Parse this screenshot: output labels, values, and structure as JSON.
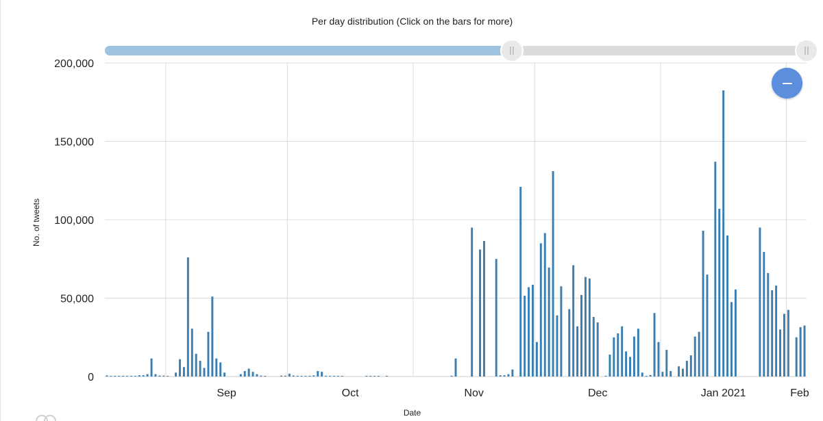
{
  "colors": {
    "bar": "#3c7eb0",
    "grid": "#dcdcdc",
    "slider_fill": "#9ec3e0",
    "slider_track": "#dcdcdc",
    "zoom_button": "#5b8fde"
  },
  "icons": {
    "zoom_button": "minus-icon",
    "slider_handle": "grip-lines-icon"
  },
  "slider": {
    "start_fraction": 0,
    "end_fraction": 0.58
  },
  "chart_data": {
    "type": "bar",
    "title": "Per day distribution (Click on the bars for more)",
    "xlabel": "Date",
    "ylabel": "No. of tweets",
    "ylim": [
      0,
      200000
    ],
    "yticks": [
      0,
      50000,
      100000,
      150000,
      200000
    ],
    "ytick_labels": [
      "0",
      "50,000",
      "100,000",
      "150,000",
      "200,000"
    ],
    "xtick_labels": [
      "Sep",
      "Oct",
      "Nov",
      "Dec",
      "Jan 2021",
      "Feb"
    ],
    "xtick_dates": [
      "2020-09-01",
      "2020-10-01",
      "2020-11-01",
      "2020-12-01",
      "2021-01-01",
      "2021-02-01"
    ],
    "xlim": [
      "2020-08-17",
      "2021-02-05"
    ],
    "grid": true,
    "series": [
      {
        "points": [
          [
            "2020-08-17",
            700
          ],
          [
            "2020-08-18",
            300
          ],
          [
            "2020-08-19",
            300
          ],
          [
            "2020-08-20",
            300
          ],
          [
            "2020-08-21",
            300
          ],
          [
            "2020-08-22",
            300
          ],
          [
            "2020-08-23",
            300
          ],
          [
            "2020-08-24",
            300
          ],
          [
            "2020-08-25",
            800
          ],
          [
            "2020-08-26",
            800
          ],
          [
            "2020-08-27",
            1500
          ],
          [
            "2020-08-28",
            11500
          ],
          [
            "2020-08-29",
            1500
          ],
          [
            "2020-08-30",
            600
          ],
          [
            "2020-08-31",
            600
          ],
          [
            "2020-09-01",
            400
          ],
          [
            "2020-09-03",
            2500
          ],
          [
            "2020-09-04",
            11000
          ],
          [
            "2020-09-05",
            6000
          ],
          [
            "2020-09-06",
            76000
          ],
          [
            "2020-09-07",
            30500
          ],
          [
            "2020-09-08",
            14500
          ],
          [
            "2020-09-09",
            10000
          ],
          [
            "2020-09-10",
            5500
          ],
          [
            "2020-09-11",
            28500
          ],
          [
            "2020-09-12",
            51000
          ],
          [
            "2020-09-13",
            11500
          ],
          [
            "2020-09-14",
            9000
          ],
          [
            "2020-09-15",
            2500
          ],
          [
            "2020-09-19",
            1500
          ],
          [
            "2020-09-20",
            3500
          ],
          [
            "2020-09-21",
            5000
          ],
          [
            "2020-09-22",
            3000
          ],
          [
            "2020-09-23",
            1500
          ],
          [
            "2020-09-24",
            600
          ],
          [
            "2020-09-25",
            300
          ],
          [
            "2020-09-29",
            600
          ],
          [
            "2020-09-30",
            500
          ],
          [
            "2020-10-01",
            1800
          ],
          [
            "2020-10-02",
            600
          ],
          [
            "2020-10-03",
            500
          ],
          [
            "2020-10-04",
            400
          ],
          [
            "2020-10-05",
            400
          ],
          [
            "2020-10-06",
            400
          ],
          [
            "2020-10-07",
            700
          ],
          [
            "2020-10-08",
            3500
          ],
          [
            "2020-10-09",
            3000
          ],
          [
            "2020-10-10",
            500
          ],
          [
            "2020-10-11",
            300
          ],
          [
            "2020-10-12",
            300
          ],
          [
            "2020-10-13",
            300
          ],
          [
            "2020-10-14",
            300
          ],
          [
            "2020-10-20",
            300
          ],
          [
            "2020-10-21",
            300
          ],
          [
            "2020-10-22",
            300
          ],
          [
            "2020-10-23",
            300
          ],
          [
            "2020-10-25",
            300
          ],
          [
            "2020-11-10",
            500
          ],
          [
            "2020-11-11",
            11500
          ],
          [
            "2020-11-15",
            95000
          ],
          [
            "2020-11-17",
            81000
          ],
          [
            "2020-11-18",
            86500
          ],
          [
            "2020-11-21",
            75000
          ],
          [
            "2020-11-22",
            800
          ],
          [
            "2020-11-23",
            800
          ],
          [
            "2020-11-24",
            1500
          ],
          [
            "2020-11-25",
            4500
          ],
          [
            "2020-11-27",
            121000
          ],
          [
            "2020-11-28",
            51500
          ],
          [
            "2020-11-29",
            57000
          ],
          [
            "2020-11-30",
            58500
          ],
          [
            "2020-12-01",
            22000
          ],
          [
            "2020-12-02",
            85000
          ],
          [
            "2020-12-03",
            91500
          ],
          [
            "2020-12-04",
            69500
          ],
          [
            "2020-12-05",
            131000
          ],
          [
            "2020-12-06",
            39000
          ],
          [
            "2020-12-07",
            57500
          ],
          [
            "2020-12-09",
            43000
          ],
          [
            "2020-12-10",
            71000
          ],
          [
            "2020-12-11",
            32000
          ],
          [
            "2020-12-12",
            52000
          ],
          [
            "2020-12-13",
            63500
          ],
          [
            "2020-12-14",
            62500
          ],
          [
            "2020-12-15",
            38000
          ],
          [
            "2020-12-16",
            34500
          ],
          [
            "2020-12-18",
            500
          ],
          [
            "2020-12-19",
            14000
          ],
          [
            "2020-12-20",
            25000
          ],
          [
            "2020-12-21",
            27500
          ],
          [
            "2020-12-22",
            32000
          ],
          [
            "2020-12-23",
            16000
          ],
          [
            "2020-12-24",
            12500
          ],
          [
            "2020-12-25",
            25500
          ],
          [
            "2020-12-26",
            30500
          ],
          [
            "2020-12-27",
            2500
          ],
          [
            "2020-12-28",
            300
          ],
          [
            "2020-12-29",
            1000
          ],
          [
            "2020-12-30",
            40500
          ],
          [
            "2020-12-31",
            22000
          ],
          [
            "2021-01-01",
            3000
          ],
          [
            "2021-01-02",
            17000
          ],
          [
            "2021-01-03",
            3500
          ],
          [
            "2021-01-05",
            6500
          ],
          [
            "2021-01-06",
            5000
          ],
          [
            "2021-01-07",
            10000
          ],
          [
            "2021-01-08",
            13500
          ],
          [
            "2021-01-09",
            25500
          ],
          [
            "2021-01-10",
            28500
          ],
          [
            "2021-01-11",
            93000
          ],
          [
            "2021-01-12",
            65000
          ],
          [
            "2021-01-14",
            137000
          ],
          [
            "2021-01-15",
            107000
          ],
          [
            "2021-01-16",
            182500
          ],
          [
            "2021-01-17",
            90000
          ],
          [
            "2021-01-18",
            47500
          ],
          [
            "2021-01-19",
            55500
          ],
          [
            "2021-01-25",
            95000
          ],
          [
            "2021-01-26",
            79500
          ],
          [
            "2021-01-27",
            66000
          ],
          [
            "2021-01-28",
            55000
          ],
          [
            "2021-01-29",
            58000
          ],
          [
            "2021-01-30",
            30000
          ],
          [
            "2021-01-31",
            40000
          ],
          [
            "2021-02-01",
            42500
          ],
          [
            "2021-02-03",
            25000
          ],
          [
            "2021-02-04",
            31500
          ],
          [
            "2021-02-05",
            32500
          ]
        ]
      }
    ]
  }
}
